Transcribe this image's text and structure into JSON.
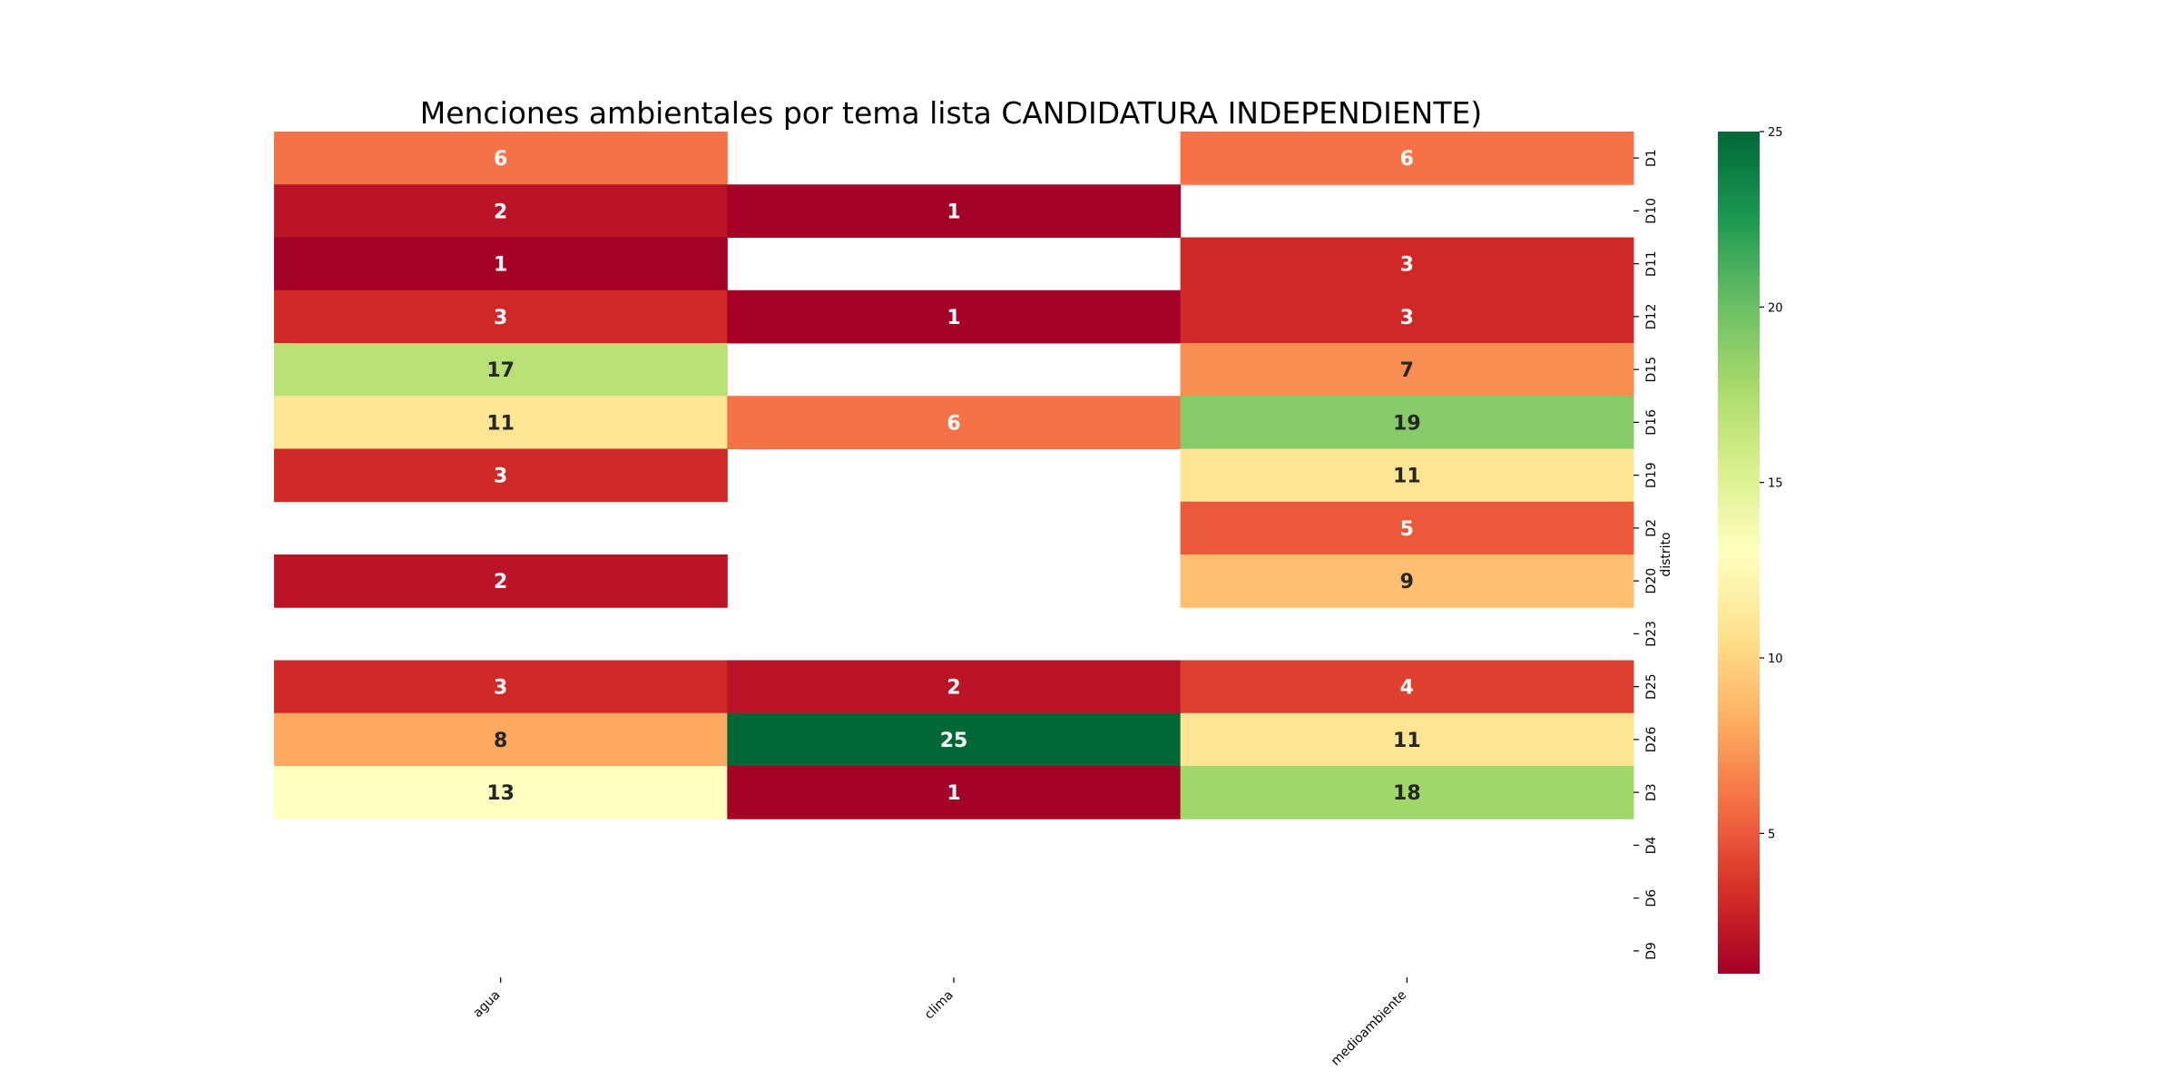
{
  "chart_data": {
    "type": "heatmap",
    "title": "Menciones ambientales por tema lista CANDIDATURA INDEPENDIENTE)",
    "xlabel": "",
    "ylabel": "distrito",
    "x_categories": [
      "agua",
      "clima",
      "medioambiente"
    ],
    "y_categories": [
      "D1",
      "D10",
      "D11",
      "D12",
      "D15",
      "D16",
      "D19",
      "D2",
      "D20",
      "D23",
      "D25",
      "D26",
      "D3",
      "D4",
      "D6",
      "D9"
    ],
    "values": [
      [
        6,
        null,
        6
      ],
      [
        2,
        1,
        null
      ],
      [
        1,
        null,
        3
      ],
      [
        3,
        1,
        3
      ],
      [
        17,
        null,
        7
      ],
      [
        11,
        6,
        19
      ],
      [
        3,
        null,
        11
      ],
      [
        null,
        null,
        5
      ],
      [
        2,
        null,
        9
      ],
      [
        null,
        null,
        null
      ],
      [
        3,
        2,
        4
      ],
      [
        8,
        25,
        11
      ],
      [
        13,
        1,
        18
      ],
      [
        null,
        null,
        null
      ],
      [
        null,
        null,
        null
      ],
      [
        null,
        null,
        null
      ]
    ],
    "colormap": "RdYlGn",
    "colorbar": {
      "min": 1,
      "max": 25,
      "ticks": [
        5,
        10,
        15,
        20,
        25
      ],
      "position": "right"
    },
    "y_axis_position": "right",
    "annotations": true,
    "grid": false
  }
}
